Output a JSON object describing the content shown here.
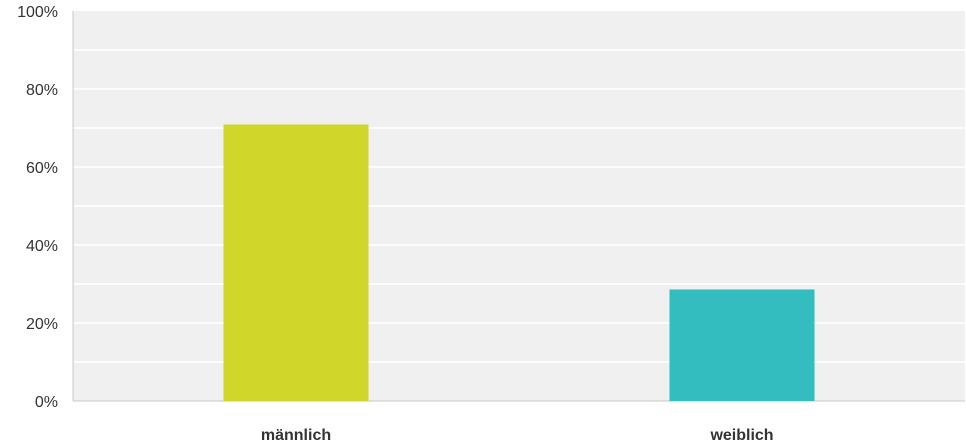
{
  "chart_data": {
    "type": "bar",
    "categories": [
      "männlich",
      "weiblich"
    ],
    "values": [
      70.9,
      28.6
    ],
    "colors": [
      "#d0d62a",
      "#34bdbf"
    ],
    "y_ticks": [
      "0%",
      "20%",
      "40%",
      "60%",
      "80%",
      "100%"
    ],
    "ylim": [
      0,
      100
    ],
    "y_unit": "%",
    "grid": true,
    "title": "",
    "xlabel": "",
    "ylabel": ""
  },
  "style": {
    "plot_background": "#f0f0f0",
    "gridline_color": "#ffffff",
    "axis_color": "#c8c8c8",
    "text_color": "#333333"
  }
}
